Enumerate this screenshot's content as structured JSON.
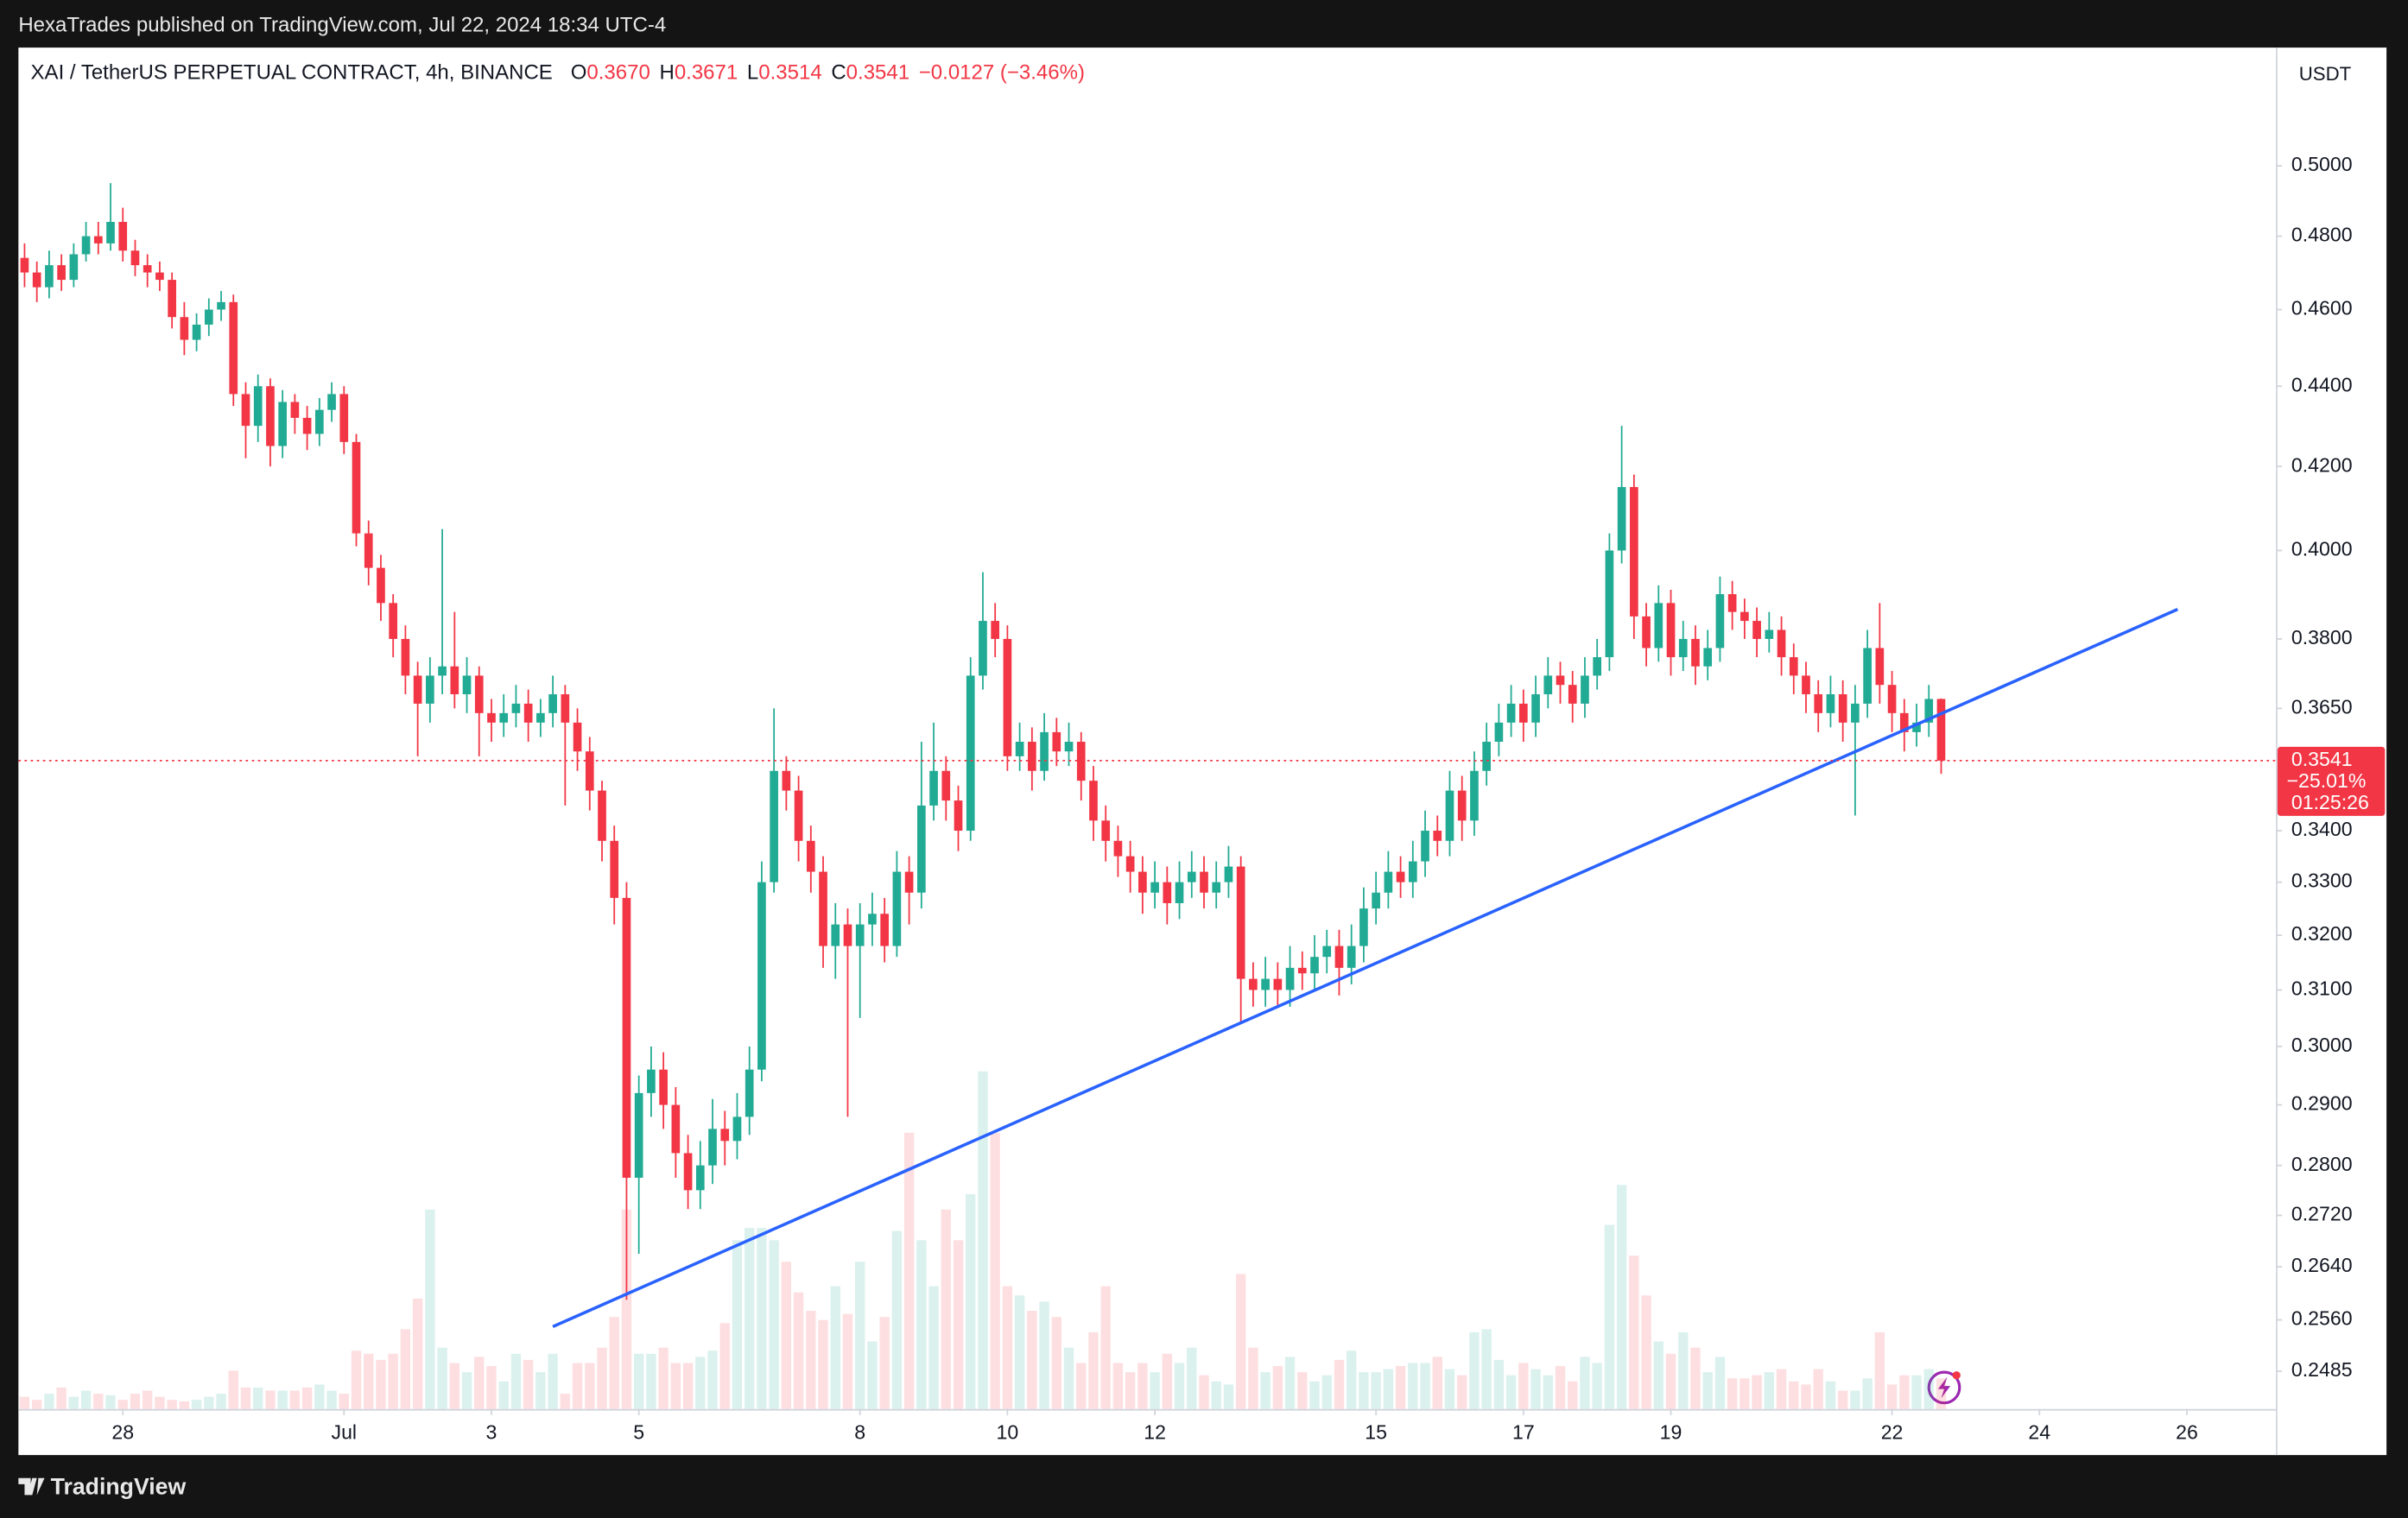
{
  "header": {
    "text": "HexaTrades published on TradingView.com, Jul 22, 2024 18:34 UTC-4"
  },
  "footer": {
    "brand": "TradingView"
  },
  "chart_data": {
    "type": "candlestick",
    "legend": {
      "symbol": "XAI / TetherUS PERPETUAL CONTRACT, 4h, BINANCE",
      "items": [
        {
          "key": "O",
          "value": "0.3670"
        },
        {
          "key": "H",
          "value": "0.3671"
        },
        {
          "key": "L",
          "value": "0.3514"
        },
        {
          "key": "C",
          "value": "0.3541"
        }
      ],
      "change": "−0.0127 (−3.46%)"
    },
    "currency": "USDT",
    "open": [
      0.474,
      0.47,
      0.466,
      0.472,
      0.468,
      0.475,
      0.48,
      0.478,
      0.484,
      0.476,
      0.472,
      0.47,
      0.468,
      0.458,
      0.452,
      0.456,
      0.46,
      0.462,
      0.438,
      0.43,
      0.44,
      0.425,
      0.436,
      0.432,
      0.428,
      0.434,
      0.438,
      0.426,
      0.404,
      0.396,
      0.388,
      0.38,
      0.372,
      0.366,
      0.372,
      0.374,
      0.368,
      0.372,
      0.364,
      0.362,
      0.364,
      0.366,
      0.362,
      0.364,
      0.368,
      0.362,
      0.356,
      0.348,
      0.338,
      0.327,
      0.278,
      0.292,
      0.296,
      0.29,
      0.282,
      0.276,
      0.28,
      0.286,
      0.284,
      0.288,
      0.296,
      0.33,
      0.352,
      0.348,
      0.338,
      0.332,
      0.318,
      0.322,
      0.318,
      0.322,
      0.324,
      0.318,
      0.332,
      0.328,
      0.345,
      0.352,
      0.346,
      0.34,
      0.372,
      0.384,
      0.38,
      0.355,
      0.358,
      0.352,
      0.36,
      0.356,
      0.358,
      0.35,
      0.342,
      0.338,
      0.335,
      0.332,
      0.328,
      0.33,
      0.326,
      0.33,
      0.332,
      0.328,
      0.33,
      0.333,
      0.312,
      0.31,
      0.312,
      0.31,
      0.314,
      0.313,
      0.316,
      0.318,
      0.314,
      0.318,
      0.325,
      0.328,
      0.332,
      0.33,
      0.334,
      0.34,
      0.338,
      0.348,
      0.342,
      0.352,
      0.358,
      0.362,
      0.366,
      0.362,
      0.368,
      0.372,
      0.37,
      0.366,
      0.372,
      0.376,
      0.4,
      0.415,
      0.385,
      0.378,
      0.388,
      0.376,
      0.38,
      0.374,
      0.378,
      0.39,
      0.386,
      0.384,
      0.38,
      0.382,
      0.376,
      0.372,
      0.368,
      0.364,
      0.368,
      0.362,
      0.366,
      0.378,
      0.37,
      0.364,
      0.36,
      0.362,
      0.367
    ],
    "high": [
      0.478,
      0.473,
      0.476,
      0.475,
      0.478,
      0.484,
      0.484,
      0.495,
      0.488,
      0.479,
      0.475,
      0.473,
      0.47,
      0.462,
      0.459,
      0.463,
      0.465,
      0.464,
      0.441,
      0.443,
      0.442,
      0.439,
      0.438,
      0.435,
      0.437,
      0.441,
      0.44,
      0.428,
      0.407,
      0.399,
      0.39,
      0.383,
      0.375,
      0.376,
      0.405,
      0.386,
      0.376,
      0.374,
      0.367,
      0.368,
      0.37,
      0.369,
      0.367,
      0.372,
      0.37,
      0.365,
      0.359,
      0.35,
      0.341,
      0.33,
      0.295,
      0.3,
      0.299,
      0.293,
      0.285,
      0.284,
      0.291,
      0.289,
      0.292,
      0.3,
      0.334,
      0.365,
      0.355,
      0.351,
      0.341,
      0.335,
      0.326,
      0.325,
      0.326,
      0.328,
      0.327,
      0.336,
      0.335,
      0.358,
      0.362,
      0.355,
      0.349,
      0.376,
      0.395,
      0.388,
      0.383,
      0.362,
      0.361,
      0.364,
      0.363,
      0.362,
      0.36,
      0.353,
      0.345,
      0.341,
      0.338,
      0.335,
      0.334,
      0.333,
      0.334,
      0.336,
      0.335,
      0.334,
      0.337,
      0.335,
      0.315,
      0.316,
      0.315,
      0.318,
      0.317,
      0.32,
      0.321,
      0.321,
      0.322,
      0.329,
      0.332,
      0.336,
      0.335,
      0.338,
      0.344,
      0.343,
      0.352,
      0.351,
      0.356,
      0.362,
      0.366,
      0.37,
      0.369,
      0.372,
      0.376,
      0.375,
      0.373,
      0.376,
      0.38,
      0.404,
      0.43,
      0.418,
      0.388,
      0.392,
      0.391,
      0.384,
      0.383,
      0.382,
      0.394,
      0.393,
      0.389,
      0.387,
      0.386,
      0.385,
      0.379,
      0.375,
      0.371,
      0.372,
      0.371,
      0.37,
      0.382,
      0.388,
      0.373,
      0.367,
      0.366,
      0.37,
      0.3671
    ],
    "low": [
      0.466,
      0.462,
      0.463,
      0.465,
      0.466,
      0.473,
      0.475,
      0.476,
      0.473,
      0.469,
      0.466,
      0.465,
      0.455,
      0.448,
      0.449,
      0.453,
      0.457,
      0.435,
      0.422,
      0.426,
      0.42,
      0.422,
      0.428,
      0.424,
      0.425,
      0.431,
      0.423,
      0.401,
      0.392,
      0.384,
      0.376,
      0.368,
      0.355,
      0.362,
      0.368,
      0.365,
      0.364,
      0.355,
      0.358,
      0.359,
      0.361,
      0.358,
      0.359,
      0.361,
      0.345,
      0.352,
      0.344,
      0.334,
      0.322,
      0.259,
      0.266,
      0.288,
      0.286,
      0.278,
      0.273,
      0.273,
      0.277,
      0.28,
      0.281,
      0.285,
      0.294,
      0.328,
      0.344,
      0.334,
      0.328,
      0.314,
      0.312,
      0.288,
      0.305,
      0.318,
      0.315,
      0.316,
      0.322,
      0.325,
      0.342,
      0.342,
      0.336,
      0.338,
      0.369,
      0.376,
      0.352,
      0.352,
      0.348,
      0.35,
      0.353,
      0.353,
      0.346,
      0.338,
      0.334,
      0.331,
      0.328,
      0.324,
      0.325,
      0.322,
      0.323,
      0.327,
      0.325,
      0.325,
      0.327,
      0.304,
      0.307,
      0.307,
      0.307,
      0.307,
      0.31,
      0.31,
      0.313,
      0.309,
      0.311,
      0.315,
      0.322,
      0.325,
      0.327,
      0.327,
      0.331,
      0.335,
      0.335,
      0.338,
      0.339,
      0.349,
      0.355,
      0.359,
      0.358,
      0.359,
      0.365,
      0.366,
      0.362,
      0.363,
      0.369,
      0.373,
      0.397,
      0.38,
      0.374,
      0.375,
      0.372,
      0.373,
      0.37,
      0.371,
      0.375,
      0.382,
      0.38,
      0.376,
      0.377,
      0.372,
      0.368,
      0.364,
      0.36,
      0.361,
      0.358,
      0.343,
      0.363,
      0.366,
      0.36,
      0.356,
      0.357,
      0.359,
      0.3514
    ],
    "close": [
      0.47,
      0.466,
      0.472,
      0.468,
      0.475,
      0.48,
      0.478,
      0.484,
      0.476,
      0.472,
      0.47,
      0.468,
      0.458,
      0.452,
      0.456,
      0.46,
      0.462,
      0.438,
      0.43,
      0.44,
      0.425,
      0.436,
      0.432,
      0.428,
      0.434,
      0.438,
      0.426,
      0.404,
      0.396,
      0.388,
      0.38,
      0.372,
      0.366,
      0.372,
      0.374,
      0.368,
      0.372,
      0.364,
      0.362,
      0.364,
      0.366,
      0.362,
      0.364,
      0.368,
      0.362,
      0.356,
      0.348,
      0.338,
      0.327,
      0.278,
      0.292,
      0.296,
      0.29,
      0.282,
      0.276,
      0.28,
      0.286,
      0.284,
      0.288,
      0.296,
      0.33,
      0.352,
      0.348,
      0.338,
      0.332,
      0.318,
      0.322,
      0.318,
      0.322,
      0.324,
      0.318,
      0.332,
      0.328,
      0.345,
      0.352,
      0.346,
      0.34,
      0.372,
      0.384,
      0.38,
      0.355,
      0.358,
      0.352,
      0.36,
      0.356,
      0.358,
      0.35,
      0.342,
      0.338,
      0.335,
      0.332,
      0.328,
      0.33,
      0.326,
      0.33,
      0.332,
      0.328,
      0.33,
      0.333,
      0.312,
      0.31,
      0.312,
      0.31,
      0.314,
      0.313,
      0.316,
      0.318,
      0.314,
      0.318,
      0.325,
      0.328,
      0.332,
      0.33,
      0.334,
      0.34,
      0.338,
      0.348,
      0.342,
      0.352,
      0.358,
      0.362,
      0.366,
      0.362,
      0.368,
      0.372,
      0.37,
      0.366,
      0.372,
      0.376,
      0.4,
      0.415,
      0.385,
      0.378,
      0.388,
      0.376,
      0.38,
      0.374,
      0.378,
      0.39,
      0.386,
      0.384,
      0.38,
      0.382,
      0.376,
      0.372,
      0.368,
      0.364,
      0.368,
      0.362,
      0.366,
      0.378,
      0.37,
      0.364,
      0.36,
      0.362,
      0.367,
      0.3541
    ],
    "volume": [
      8,
      6,
      10,
      14,
      8,
      12,
      10,
      9,
      6,
      10,
      12,
      8,
      6,
      5,
      6,
      8,
      10,
      25,
      14,
      14,
      12,
      12,
      12,
      14,
      16,
      12,
      10,
      38,
      36,
      32,
      36,
      52,
      72,
      130,
      40,
      30,
      24,
      34,
      28,
      18,
      36,
      32,
      24,
      36,
      10,
      30,
      30,
      40,
      60,
      130,
      36,
      36,
      40,
      30,
      30,
      34,
      38,
      56,
      110,
      118,
      118,
      110,
      96,
      76,
      64,
      58,
      80,
      62,
      96,
      44,
      60,
      116,
      180,
      110,
      80,
      130,
      110,
      140,
      220,
      180,
      80,
      74,
      64,
      70,
      60,
      40,
      30,
      50,
      80,
      30,
      24,
      30,
      24,
      36,
      30,
      40,
      22,
      18,
      16,
      88,
      40,
      24,
      28,
      34,
      24,
      18,
      22,
      32,
      38,
      24,
      24,
      26,
      28,
      30,
      30,
      34,
      26,
      22,
      50,
      52,
      32,
      22,
      30,
      26,
      22,
      28,
      18,
      34,
      30,
      120,
      146,
      100,
      74,
      44,
      36,
      50,
      40,
      24,
      34,
      20,
      20,
      22,
      24,
      26,
      18,
      16,
      26,
      18,
      12,
      12,
      20,
      50,
      16,
      22,
      22,
      26,
      20
    ],
    "up_color": "#22ab94",
    "down_color": "#f23645",
    "log_scale": true,
    "ylim": [
      0.2431,
      0.5355
    ],
    "yticks": [
      {
        "value": 0.5,
        "label": "0.5000"
      },
      {
        "value": 0.48,
        "label": "0.4800"
      },
      {
        "value": 0.46,
        "label": "0.4600"
      },
      {
        "value": 0.44,
        "label": "0.4400"
      },
      {
        "value": 0.42,
        "label": "0.4200"
      },
      {
        "value": 0.4,
        "label": "0.4000"
      },
      {
        "value": 0.38,
        "label": "0.3800"
      },
      {
        "value": 0.365,
        "label": "0.3650"
      },
      {
        "value": 0.34,
        "label": "0.3400"
      },
      {
        "value": 0.33,
        "label": "0.3300"
      },
      {
        "value": 0.32,
        "label": "0.3200"
      },
      {
        "value": 0.31,
        "label": "0.3100"
      },
      {
        "value": 0.3,
        "label": "0.3000"
      },
      {
        "value": 0.29,
        "label": "0.2900"
      },
      {
        "value": 0.28,
        "label": "0.2800"
      },
      {
        "value": 0.272,
        "label": "0.2720"
      },
      {
        "value": 0.264,
        "label": "0.2640"
      },
      {
        "value": 0.256,
        "label": "0.2560"
      },
      {
        "value": 0.2485,
        "label": "0.2485"
      }
    ],
    "xlim": [
      -0.5,
      183.25
    ],
    "xticks": [
      {
        "value": 8,
        "label": "28"
      },
      {
        "value": 26,
        "label": "Jul"
      },
      {
        "value": 38,
        "label": "3"
      },
      {
        "value": 50,
        "label": "5"
      },
      {
        "value": 68,
        "label": "8"
      },
      {
        "value": 80,
        "label": "10"
      },
      {
        "value": 92,
        "label": "12"
      },
      {
        "value": 110,
        "label": "15"
      },
      {
        "value": 122,
        "label": "17"
      },
      {
        "value": 134,
        "label": "19"
      },
      {
        "value": 152,
        "label": "22"
      },
      {
        "value": 164,
        "label": "24"
      },
      {
        "value": 176,
        "label": "26"
      }
    ],
    "last_price": {
      "label": "0.3541",
      "change": "−25.01%",
      "countdown": "01:25:26"
    },
    "trendline": {
      "color": "#2962ff",
      "x": [
        43,
        175.25
      ],
      "y": [
        0.255,
        0.3866
      ]
    }
  }
}
